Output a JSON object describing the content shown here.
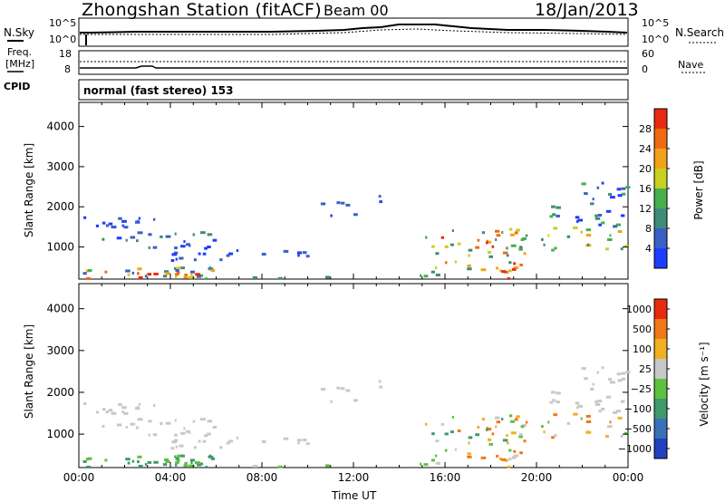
{
  "header": {
    "station": "Zhongshan Station (fitACF)",
    "beam": "Beam 00",
    "date": "18/Jan/2013"
  },
  "noise_panel": {
    "left_label": "N.Sky",
    "right_label": "N.Search",
    "left_ticks": [
      "10^5",
      "10^0"
    ],
    "right_ticks": [
      "10^5",
      "10^0"
    ]
  },
  "freq_panel": {
    "left_label_1": "Freq.",
    "left_label_2": "[MHz]",
    "right_label": "Nave",
    "left_ticks": [
      "18",
      "8"
    ],
    "right_ticks": [
      "60",
      "0"
    ]
  },
  "cpid": {
    "label": "CPID",
    "text": "normal (fast stereo) 153"
  },
  "chart_data": [
    {
      "type": "heatmap",
      "name": "power",
      "ylabel": "Slant Range [km]",
      "xlabel": "Time UT",
      "xlim": [
        "00:00",
        "24:00"
      ],
      "ylim": [
        200,
        4600
      ],
      "yticks": [
        1000,
        2000,
        3000,
        4000
      ],
      "xtick_labels": [
        "00:00",
        "04:00",
        "08:00",
        "12:00",
        "16:00",
        "20:00",
        "00:00"
      ],
      "colorbar": {
        "label": "Power [dB]",
        "ticks": [
          "4",
          "8",
          "12",
          "16",
          "20",
          "24",
          "28"
        ],
        "colors": [
          "#1e3cff",
          "#3a60c6",
          "#3e8c78",
          "#46b04a",
          "#c8d020",
          "#f2a21a",
          "#f06a14",
          "#e82a10"
        ]
      }
    },
    {
      "type": "heatmap",
      "name": "velocity",
      "ylabel": "Slant Range [km]",
      "xlabel": "Time UT",
      "xlim": [
        "00:00",
        "24:00"
      ],
      "ylim": [
        200,
        4600
      ],
      "yticks": [
        1000,
        2000,
        3000,
        4000
      ],
      "xtick_labels": [
        "00:00",
        "04:00",
        "08:00",
        "12:00",
        "16:00",
        "20:00",
        "00:00"
      ],
      "colorbar": {
        "label": "Velocity [m s⁻¹]",
        "ticks": [
          "1000",
          "500",
          "100",
          "25",
          "−25",
          "−100",
          "−500",
          "−1000"
        ],
        "colors": [
          "#2040c0",
          "#3a70b8",
          "#3f9a6a",
          "#5fc040",
          "#c8c8c8",
          "#f0b020",
          "#f07818",
          "#e82a10"
        ]
      }
    }
  ]
}
